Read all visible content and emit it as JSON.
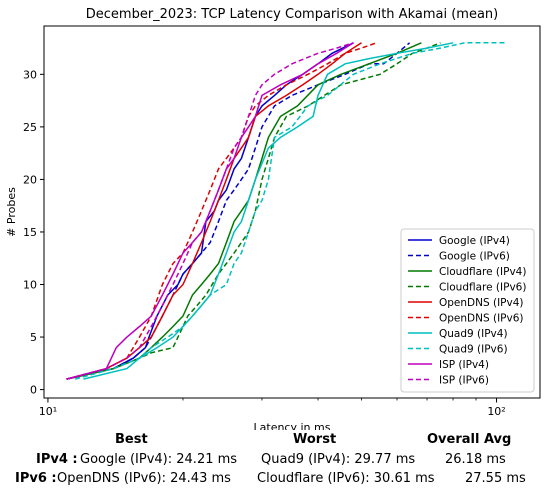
{
  "chart_data": {
    "type": "line",
    "title": "December_2023: TCP Latency Comparison with Akamai (mean)",
    "xlabel": "Latency in ms",
    "ylabel": "# Probes",
    "xscale": "log",
    "xlim": [
      9.8,
      125
    ],
    "ylim": [
      -0.8,
      34.6
    ],
    "x_ticks": [
      10,
      100
    ],
    "x_tick_labels": [
      "10¹",
      "10²"
    ],
    "y_ticks": [
      0,
      5,
      10,
      15,
      20,
      25,
      30
    ],
    "legend_position": "lower-right",
    "grid": false,
    "series": [
      {
        "name": "Google (IPv4)",
        "color": "#0000cc",
        "dash": "solid",
        "x": [
          11,
          14,
          15.5,
          16.5,
          16.8,
          17.5,
          18,
          18.5,
          19.5,
          20,
          21,
          22,
          22.5,
          23.5,
          24,
          25,
          25.5,
          26,
          27,
          28,
          29,
          30,
          32,
          34,
          37,
          40,
          43,
          48
        ],
        "y": [
          1,
          2,
          3,
          4,
          5,
          7,
          8,
          9,
          10,
          11,
          12,
          13,
          16,
          17,
          18,
          19,
          20,
          21,
          22,
          24,
          26,
          27,
          28,
          29,
          30,
          31,
          32,
          33
        ]
      },
      {
        "name": "Google (IPv6)",
        "color": "#0000cc",
        "dash": "dashed",
        "x": [
          11,
          14,
          15.5,
          16.5,
          17,
          18,
          19,
          20,
          21,
          22,
          23,
          24,
          25,
          26,
          27,
          28,
          29,
          30,
          32,
          35,
          40,
          46,
          52,
          56,
          60,
          64
        ],
        "y": [
          1,
          2,
          3,
          4,
          5,
          7,
          9,
          11,
          12,
          13,
          14,
          16,
          18,
          19,
          20,
          21,
          23,
          25,
          27,
          28,
          29,
          30,
          31,
          31,
          32,
          33
        ]
      },
      {
        "name": "Cloudflare (IPv4)",
        "color": "#007a00",
        "dash": "solid",
        "x": [
          11,
          14,
          16,
          17,
          18,
          19,
          20,
          21,
          22,
          23,
          24,
          25,
          26,
          27,
          28,
          29,
          30,
          31,
          33,
          36,
          40,
          45,
          52,
          60,
          68
        ],
        "y": [
          1,
          2,
          3,
          4,
          5,
          6,
          7,
          9,
          10,
          11,
          12,
          14,
          16,
          17,
          18,
          20,
          22,
          24,
          26,
          27,
          29,
          30,
          31,
          32,
          33
        ]
      },
      {
        "name": "Cloudflare (IPv6)",
        "color": "#007a00",
        "dash": "dashed",
        "x": [
          11,
          14,
          16,
          17,
          19,
          20,
          20.5,
          21.5,
          22.5,
          24,
          25,
          26,
          27,
          28,
          29,
          30,
          31,
          32,
          34,
          38,
          45,
          55,
          60,
          65,
          70,
          75
        ],
        "y": [
          1,
          2,
          3,
          3.5,
          4,
          6,
          7,
          8,
          9,
          11,
          12,
          13,
          14,
          15,
          17,
          20,
          22,
          24,
          26,
          27,
          29,
          30,
          31,
          32,
          32.5,
          33
        ]
      },
      {
        "name": "OpenDNS (IPv4)",
        "color": "#dd0000",
        "dash": "solid",
        "x": [
          11,
          13.5,
          15,
          16,
          17,
          18,
          19,
          20,
          21,
          22,
          23,
          24,
          25,
          26,
          27,
          28,
          29,
          31,
          34,
          37,
          40,
          43,
          46,
          50
        ],
        "y": [
          1,
          2,
          3,
          4,
          5,
          7,
          9,
          10,
          12,
          14,
          16,
          18,
          20,
          22,
          23,
          24,
          26,
          27,
          28,
          29,
          30,
          31,
          32,
          33
        ]
      },
      {
        "name": "OpenDNS (IPv6)",
        "color": "#dd0000",
        "dash": "dashed",
        "x": [
          11,
          13.5,
          15,
          16,
          17,
          18,
          19,
          20,
          21,
          22,
          23,
          24,
          25,
          26,
          27,
          28,
          29,
          31,
          34,
          38,
          42,
          46,
          50,
          54
        ],
        "y": [
          1,
          2,
          3,
          5,
          7,
          10,
          12,
          13,
          15,
          17,
          19,
          21,
          22,
          23,
          24,
          26,
          27,
          28,
          29,
          30,
          31,
          32,
          32.5,
          33
        ]
      },
      {
        "name": "Quad9 (IPv4)",
        "color": "#00bfbf",
        "dash": "solid",
        "x": [
          12,
          15,
          16,
          17.5,
          19,
          20,
          21,
          22,
          23,
          24,
          25,
          26,
          27,
          28,
          29,
          31,
          33,
          36,
          39,
          40,
          42,
          46,
          52,
          60,
          70,
          80
        ],
        "y": [
          1,
          2,
          3,
          4,
          5,
          6,
          7,
          8,
          9,
          11,
          13,
          15,
          16,
          18,
          20,
          23,
          24,
          25,
          26,
          28,
          30,
          31,
          31.5,
          32,
          32.5,
          33
        ]
      },
      {
        "name": "Quad9 (IPv6)",
        "color": "#00bfbf",
        "dash": "dashed",
        "x": [
          11.5,
          14,
          16,
          17,
          18.5,
          20,
          21,
          22,
          23,
          25,
          26,
          27,
          28,
          29,
          30,
          31,
          32,
          35,
          38,
          42,
          48,
          55,
          65,
          75,
          85,
          95,
          105
        ],
        "y": [
          1,
          2,
          3,
          4,
          5,
          6,
          7,
          8,
          9,
          10,
          12,
          13,
          15,
          17,
          18,
          20,
          24,
          25,
          27,
          28,
          30,
          31,
          32,
          32.5,
          33,
          33,
          33
        ]
      },
      {
        "name": "ISP (IPv4)",
        "color": "#bf00bf",
        "dash": "solid",
        "x": [
          11,
          13.5,
          14.2,
          15,
          16,
          17,
          18,
          19,
          20,
          21,
          22,
          23,
          24,
          25,
          26,
          27,
          28,
          29,
          30,
          33,
          37,
          40,
          44,
          48
        ],
        "y": [
          1,
          2,
          4,
          5,
          6,
          7,
          9,
          11,
          13,
          14,
          15,
          17,
          19,
          21,
          22,
          24,
          25,
          26,
          28,
          29,
          30,
          31,
          32,
          33
        ]
      },
      {
        "name": "ISP (IPv6)",
        "color": "#bf00bf",
        "dash": "dashed",
        "x": [
          11,
          13.5,
          15,
          16,
          17,
          18,
          19,
          20,
          21,
          22,
          23,
          24,
          25,
          26,
          27,
          28,
          29,
          30,
          32,
          35,
          40,
          44,
          48
        ],
        "y": [
          1,
          2,
          3,
          4,
          6,
          8,
          10,
          12,
          14,
          15,
          17,
          19,
          21,
          23,
          24,
          26,
          28,
          29,
          30,
          31,
          32,
          32.5,
          33
        ]
      }
    ]
  },
  "summary": {
    "headers": {
      "best": "Best",
      "worst": "Worst",
      "overall": "Overall Avg"
    },
    "rows": [
      {
        "label": "IPv4 :",
        "best": "Google (IPv4): 24.21 ms",
        "worst": "Quad9 (IPv4): 29.77 ms",
        "overall": "26.18 ms"
      },
      {
        "label": "IPv6 :",
        "best": "OpenDNS (IPv6): 24.43 ms",
        "worst": "Cloudflare (IPv6): 30.61 ms",
        "overall": "27.55 ms"
      }
    ]
  }
}
